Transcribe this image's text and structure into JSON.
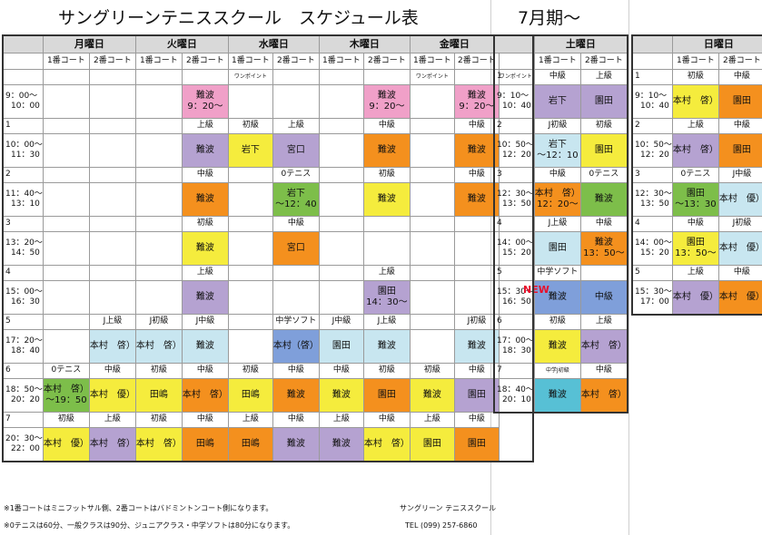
{
  "title": "サングリーンテニススクール　スケジュール表",
  "period": "7月期～",
  "days": [
    "月曜日",
    "火曜日",
    "水曜日",
    "木曜日",
    "金曜日"
  ],
  "court1": "1番コート",
  "court2": "2番コート",
  "new_badge": "NEW",
  "weekday_rows": [
    {
      "type": "h",
      "cells": [
        "",
        "",
        "",
        "",
        "",
        "ワンポイント",
        "",
        "",
        "",
        "ワンポイント",
        "",
        "ワンポイント"
      ]
    },
    {
      "type": "s",
      "t1": "9：00～",
      "t2": "10：00",
      "cells": [
        [
          "",
          ""
        ],
        [
          "",
          ""
        ],
        [
          "",
          ""
        ],
        [
          "難波\n9：20～",
          "pink"
        ],
        [
          "",
          ""
        ],
        [
          "",
          ""
        ],
        [
          "",
          ""
        ],
        [
          "難波\n9：20～",
          "pink"
        ],
        [
          "",
          ""
        ],
        [
          "難波\n9：20～",
          "pink"
        ]
      ]
    },
    {
      "type": "h",
      "cells": [
        "1",
        "",
        "",
        "",
        "上級",
        "初級",
        "上級",
        "",
        "中級",
        "",
        "中級"
      ]
    },
    {
      "type": "s",
      "t1": "10：00～",
      "t2": "11：30",
      "cells": [
        [
          "",
          ""
        ],
        [
          "",
          ""
        ],
        [
          "",
          ""
        ],
        [
          "難波",
          "purple"
        ],
        [
          "岩下",
          "yellow"
        ],
        [
          "宮口",
          "purple"
        ],
        [
          "",
          ""
        ],
        [
          "難波",
          "orange"
        ],
        [
          "",
          ""
        ],
        [
          "難波",
          "orange"
        ]
      ]
    },
    {
      "type": "h",
      "cells": [
        "2",
        "",
        "",
        "",
        "中級",
        "",
        "0テニス",
        "",
        "初級",
        "",
        "中級"
      ]
    },
    {
      "type": "s",
      "t1": "11：40～",
      "t2": "13：10",
      "cells": [
        [
          "",
          ""
        ],
        [
          "",
          ""
        ],
        [
          "",
          ""
        ],
        [
          "難波",
          "orange"
        ],
        [
          "",
          ""
        ],
        [
          "岩下\n～12：40",
          "green"
        ],
        [
          "",
          ""
        ],
        [
          "難波",
          "yellow"
        ],
        [
          "",
          ""
        ],
        [
          "難波",
          "orange"
        ]
      ]
    },
    {
      "type": "h",
      "cells": [
        "3",
        "",
        "",
        "",
        "初級",
        "",
        "中級",
        "",
        "",
        "",
        ""
      ]
    },
    {
      "type": "s",
      "t1": "13：20～",
      "t2": "14：50",
      "cells": [
        [
          "",
          ""
        ],
        [
          "",
          ""
        ],
        [
          "",
          ""
        ],
        [
          "難波",
          "yellow"
        ],
        [
          "",
          ""
        ],
        [
          "宮口",
          "orange"
        ],
        [
          "",
          ""
        ],
        [
          "",
          ""
        ],
        [
          "",
          ""
        ],
        [
          "",
          ""
        ]
      ]
    },
    {
      "type": "h",
      "cells": [
        "4",
        "",
        "",
        "",
        "上級",
        "",
        "",
        "",
        "上級",
        "",
        ""
      ]
    },
    {
      "type": "s",
      "t1": "15：00～",
      "t2": "16：30",
      "cells": [
        [
          "",
          ""
        ],
        [
          "",
          ""
        ],
        [
          "",
          ""
        ],
        [
          "難波",
          "purple"
        ],
        [
          "",
          ""
        ],
        [
          "",
          ""
        ],
        [
          "",
          ""
        ],
        [
          "園田\n14：30～",
          "purple"
        ],
        [
          "",
          ""
        ],
        [
          "",
          ""
        ]
      ]
    },
    {
      "type": "h",
      "cells": [
        "5",
        "",
        "J上級",
        "J初級",
        "J中級",
        "",
        "中学ソフト",
        "J中級",
        "J上級",
        "",
        "J初級"
      ]
    },
    {
      "type": "s",
      "t1": "17：20～",
      "t2": "18：40",
      "cells": [
        [
          "",
          ""
        ],
        [
          "本村　啓）",
          "lblue"
        ],
        [
          "本村　啓）",
          "lblue"
        ],
        [
          "難波",
          "lblue"
        ],
        [
          "",
          ""
        ],
        [
          "本村（啓）",
          "blue"
        ],
        [
          "園田",
          "lblue"
        ],
        [
          "難波",
          "lblue"
        ],
        [
          "",
          ""
        ],
        [
          "難波",
          "lblue"
        ]
      ]
    },
    {
      "type": "h",
      "cells": [
        "6",
        "0テニス",
        "中級",
        "初級",
        "中級",
        "初級",
        "中級",
        "中級",
        "初級",
        "初級",
        "中級"
      ]
    },
    {
      "type": "s",
      "t1": "18：50～",
      "t2": "20：20",
      "cells": [
        [
          "本村　啓）\n～19：50",
          "green"
        ],
        [
          "本村　優）",
          "yellow"
        ],
        [
          "田嶋",
          "yellow"
        ],
        [
          "本村　啓）",
          "orange"
        ],
        [
          "田嶋",
          "yellow"
        ],
        [
          "難波",
          "orange"
        ],
        [
          "難波",
          "yellow"
        ],
        [
          "園田",
          "orange"
        ],
        [
          "難波",
          "yellow"
        ],
        [
          "園田",
          "purple"
        ]
      ]
    },
    {
      "type": "h",
      "cells": [
        "7",
        "初級",
        "上級",
        "初級",
        "中級",
        "上級",
        "中級",
        "上級",
        "中級",
        "上級",
        "中級"
      ]
    },
    {
      "type": "s",
      "t1": "20：30～",
      "t2": "22：00",
      "cells": [
        [
          "本村　優）",
          "yellow"
        ],
        [
          "本村　啓）",
          "purple"
        ],
        [
          "本村　啓）",
          "yellow"
        ],
        [
          "田嶋",
          "orange"
        ],
        [
          "田嶋",
          "orange"
        ],
        [
          "難波",
          "purple"
        ],
        [
          "難波",
          "purple"
        ],
        [
          "本村　啓）",
          "yellow"
        ],
        [
          "園田",
          "yellow"
        ],
        [
          "園田",
          "orange"
        ]
      ]
    }
  ],
  "saturday": {
    "day": "土曜日",
    "rows": [
      {
        "type": "h",
        "cells": [
          "1",
          "中級",
          "上級"
        ]
      },
      {
        "type": "s",
        "t1": "9：10～",
        "t2": "10：40",
        "cells": [
          [
            "岩下",
            "purple"
          ],
          [
            "園田",
            "purple"
          ]
        ]
      },
      {
        "type": "h",
        "cells": [
          "2",
          "J初級",
          "初級"
        ]
      },
      {
        "type": "s",
        "t1": "10：50～",
        "t2": "12：20",
        "cells": [
          [
            "岩下\n～12：10",
            "lblue"
          ],
          [
            "園田",
            "yellow"
          ]
        ]
      },
      {
        "type": "h",
        "cells": [
          "3",
          "中級",
          "0テニス"
        ]
      },
      {
        "type": "s",
        "t1": "12：30～",
        "t2": "13：50",
        "cells": [
          [
            "本村　啓）\n12：20～",
            "orange"
          ],
          [
            "難波",
            "green"
          ]
        ]
      },
      {
        "type": "h",
        "cells": [
          "4",
          "J上級",
          "中級"
        ]
      },
      {
        "type": "s",
        "t1": "14：00～",
        "t2": "15：20",
        "cells": [
          [
            "園田",
            "lblue"
          ],
          [
            "難波\n13：50～",
            "orange"
          ]
        ]
      },
      {
        "type": "h",
        "cells": [
          "5",
          "中学ソフト",
          ""
        ]
      },
      {
        "type": "s",
        "t1": "15：30～",
        "t2": "16：50",
        "cells": [
          [
            "難波",
            "blue"
          ],
          [
            "中級",
            "blue"
          ]
        ]
      },
      {
        "type": "h",
        "cells": [
          "6",
          "初級",
          "上級"
        ]
      },
      {
        "type": "s",
        "t1": "17：00～",
        "t2": "18：30",
        "cells": [
          [
            "難波",
            "yellow"
          ],
          [
            "本村　啓）",
            "purple"
          ]
        ]
      },
      {
        "type": "h",
        "cells": [
          "7",
          "中学J初級",
          "中級"
        ]
      },
      {
        "type": "s",
        "t1": "18：40～",
        "t2": "20：10",
        "cells": [
          [
            "難波",
            "cyan"
          ],
          [
            "本村　啓）",
            "orange"
          ]
        ]
      }
    ]
  },
  "sunday": {
    "day": "日曜日",
    "rows": [
      {
        "type": "h",
        "cells": [
          "1",
          "初級",
          "中級"
        ]
      },
      {
        "type": "s",
        "t1": "9：10～",
        "t2": "10：40",
        "cells": [
          [
            "本村　啓）",
            "yellow"
          ],
          [
            "園田",
            "orange"
          ]
        ]
      },
      {
        "type": "h",
        "cells": [
          "2",
          "上級",
          "中級"
        ]
      },
      {
        "type": "s",
        "t1": "10：50～",
        "t2": "12：20",
        "cells": [
          [
            "本村　啓）",
            "purple"
          ],
          [
            "園田",
            "orange"
          ]
        ]
      },
      {
        "type": "h",
        "cells": [
          "3",
          "0テニス",
          "J中級"
        ]
      },
      {
        "type": "s",
        "t1": "12：30～",
        "t2": "13：50",
        "cells": [
          [
            "園田\n～13：30",
            "green"
          ],
          [
            "本村　優）",
            "lblue"
          ]
        ]
      },
      {
        "type": "h",
        "cells": [
          "4",
          "中級",
          "J初級"
        ]
      },
      {
        "type": "s",
        "t1": "14：00～",
        "t2": "15：20",
        "cells": [
          [
            "園田\n13：50～",
            "yellow"
          ],
          [
            "本村　優）",
            "lblue"
          ]
        ]
      },
      {
        "type": "h",
        "cells": [
          "5",
          "上級",
          "中級"
        ]
      },
      {
        "type": "s",
        "t1": "15：30～",
        "t2": "17：00",
        "cells": [
          [
            "本村　優）",
            "purple"
          ],
          [
            "本村　優）",
            "orange"
          ]
        ]
      }
    ]
  },
  "notes": {
    "note1": "※1番コートはミニフットサル側、2番コートはバドミントンコート側になります。",
    "note2": "※0テニスは60分、一般クラスは90分、ジュニアクラス・中学ソフトは80分になります。",
    "school": "サングリーン テニススクール",
    "tel": "TEL (099) 257-6860"
  }
}
